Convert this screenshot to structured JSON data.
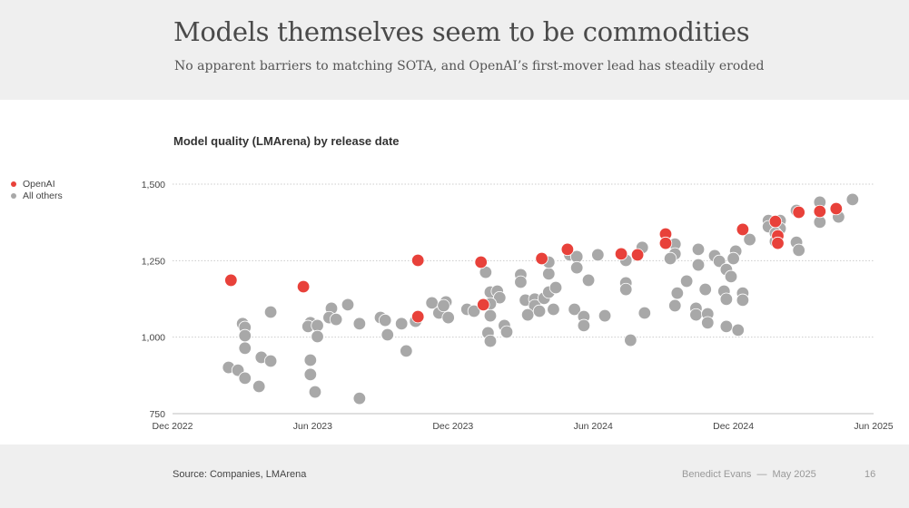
{
  "header": {
    "title": "Models themselves seem to be commodities",
    "subtitle": "No apparent barriers to matching SOTA, and OpenAI’s first-mover lead has steadily eroded"
  },
  "footer": {
    "source": "Source: Companies, LMArena",
    "author": "Benedict Evans",
    "separator": "—",
    "date": "May 2025",
    "page": "16"
  },
  "colors": {
    "openai": "#e8413a",
    "others": "#a8a8a8"
  },
  "chart_data": {
    "type": "scatter",
    "title": "Model quality (LMArena) by release date",
    "xlabel": "",
    "ylabel": "",
    "x_units": "months since Dec 2022",
    "xlim": [
      0,
      30
    ],
    "ylim": [
      750,
      1500
    ],
    "x_ticks": [
      {
        "value": 0,
        "label": "Dec 2022"
      },
      {
        "value": 6,
        "label": "Jun 2023"
      },
      {
        "value": 12,
        "label": "Dec 2023"
      },
      {
        "value": 18,
        "label": "Jun 2024"
      },
      {
        "value": 24,
        "label": "Dec 2024"
      },
      {
        "value": 30,
        "label": "Jun 2025"
      }
    ],
    "y_ticks": [
      {
        "value": 1500,
        "label": "1,500"
      },
      {
        "value": 1250,
        "label": "1,250"
      },
      {
        "value": 1000,
        "label": "1,000"
      },
      {
        "value": 750,
        "label": "750"
      }
    ],
    "grid": true,
    "legend": "left",
    "series": [
      {
        "name": "All others",
        "color": "#a8a8a8",
        "points": [
          [
            4.2,
            1082
          ],
          [
            3.0,
            1044
          ],
          [
            3.1,
            1032
          ],
          [
            3.1,
            1005
          ],
          [
            3.1,
            964
          ],
          [
            2.4,
            901
          ],
          [
            2.8,
            892
          ],
          [
            3.1,
            866
          ],
          [
            3.7,
            839
          ],
          [
            3.8,
            934
          ],
          [
            4.2,
            922
          ],
          [
            5.9,
            1047
          ],
          [
            5.8,
            1035
          ],
          [
            6.2,
            1038
          ],
          [
            6.2,
            1002
          ],
          [
            5.9,
            925
          ],
          [
            5.9,
            878
          ],
          [
            6.1,
            821
          ],
          [
            6.8,
            1094
          ],
          [
            6.7,
            1064
          ],
          [
            7.0,
            1058
          ],
          [
            7.5,
            1106
          ],
          [
            8.0,
            1044
          ],
          [
            8.9,
            1064
          ],
          [
            9.1,
            1055
          ],
          [
            9.2,
            1008
          ],
          [
            9.8,
            1044
          ],
          [
            10.0,
            955
          ],
          [
            10.4,
            1052
          ],
          [
            11.1,
            1112
          ],
          [
            11.4,
            1079
          ],
          [
            11.7,
            1115
          ],
          [
            11.6,
            1103
          ],
          [
            11.8,
            1064
          ],
          [
            8.0,
            800
          ],
          [
            12.6,
            1091
          ],
          [
            12.9,
            1085
          ],
          [
            13.4,
            1212
          ],
          [
            13.6,
            1147
          ],
          [
            13.9,
            1150
          ],
          [
            14.0,
            1129
          ],
          [
            13.6,
            1109
          ],
          [
            13.6,
            1070
          ],
          [
            13.5,
            1014
          ],
          [
            13.6,
            987
          ],
          [
            14.2,
            1038
          ],
          [
            14.3,
            1017
          ],
          [
            14.9,
            1204
          ],
          [
            14.9,
            1180
          ],
          [
            15.1,
            1121
          ],
          [
            15.5,
            1124
          ],
          [
            15.5,
            1103
          ],
          [
            15.2,
            1073
          ],
          [
            15.7,
            1085
          ],
          [
            15.9,
            1127
          ],
          [
            16.1,
            1147
          ],
          [
            16.4,
            1162
          ],
          [
            16.1,
            1207
          ],
          [
            16.1,
            1245
          ],
          [
            16.3,
            1091
          ],
          [
            17.0,
            1269
          ],
          [
            17.3,
            1263
          ],
          [
            17.3,
            1227
          ],
          [
            17.8,
            1186
          ],
          [
            17.2,
            1091
          ],
          [
            17.6,
            1067
          ],
          [
            17.6,
            1038
          ],
          [
            18.2,
            1269
          ],
          [
            18.5,
            1070
          ],
          [
            19.4,
            1251
          ],
          [
            19.4,
            1177
          ],
          [
            19.4,
            1156
          ],
          [
            20.1,
            1293
          ],
          [
            19.6,
            990
          ],
          [
            20.2,
            1079
          ],
          [
            21.5,
            1304
          ],
          [
            21.5,
            1272
          ],
          [
            21.3,
            1257
          ],
          [
            22.5,
            1287
          ],
          [
            22.5,
            1236
          ],
          [
            22.0,
            1183
          ],
          [
            21.6,
            1144
          ],
          [
            21.5,
            1103
          ],
          [
            22.8,
            1156
          ],
          [
            22.4,
            1094
          ],
          [
            22.4,
            1073
          ],
          [
            22.9,
            1076
          ],
          [
            22.9,
            1047
          ],
          [
            23.2,
            1266
          ],
          [
            23.4,
            1248
          ],
          [
            24.1,
            1281
          ],
          [
            24.0,
            1257
          ],
          [
            23.7,
            1221
          ],
          [
            23.9,
            1198
          ],
          [
            23.6,
            1150
          ],
          [
            23.7,
            1124
          ],
          [
            24.4,
            1144
          ],
          [
            24.4,
            1121
          ],
          [
            23.7,
            1035
          ],
          [
            24.2,
            1023
          ],
          [
            24.7,
            1319
          ],
          [
            25.5,
            1381
          ],
          [
            26.0,
            1381
          ],
          [
            25.5,
            1361
          ],
          [
            26.0,
            1355
          ],
          [
            25.8,
            1340
          ],
          [
            25.8,
            1313
          ],
          [
            26.7,
            1414
          ],
          [
            26.7,
            1310
          ],
          [
            26.8,
            1284
          ],
          [
            27.7,
            1441
          ],
          [
            27.7,
            1376
          ],
          [
            28.5,
            1393
          ],
          [
            29.1,
            1450
          ]
        ]
      },
      {
        "name": "OpenAI",
        "color": "#e8413a",
        "points": [
          [
            2.5,
            1186
          ],
          [
            5.6,
            1165
          ],
          [
            10.5,
            1251
          ],
          [
            10.5,
            1067
          ],
          [
            13.2,
            1245
          ],
          [
            13.3,
            1106
          ],
          [
            15.8,
            1257
          ],
          [
            16.9,
            1287
          ],
          [
            19.2,
            1272
          ],
          [
            19.9,
            1269
          ],
          [
            21.1,
            1337
          ],
          [
            21.1,
            1307
          ],
          [
            24.4,
            1352
          ],
          [
            25.8,
            1378
          ],
          [
            25.9,
            1331
          ],
          [
            25.9,
            1307
          ],
          [
            26.8,
            1408
          ],
          [
            27.7,
            1411
          ],
          [
            28.4,
            1420
          ]
        ]
      }
    ]
  }
}
